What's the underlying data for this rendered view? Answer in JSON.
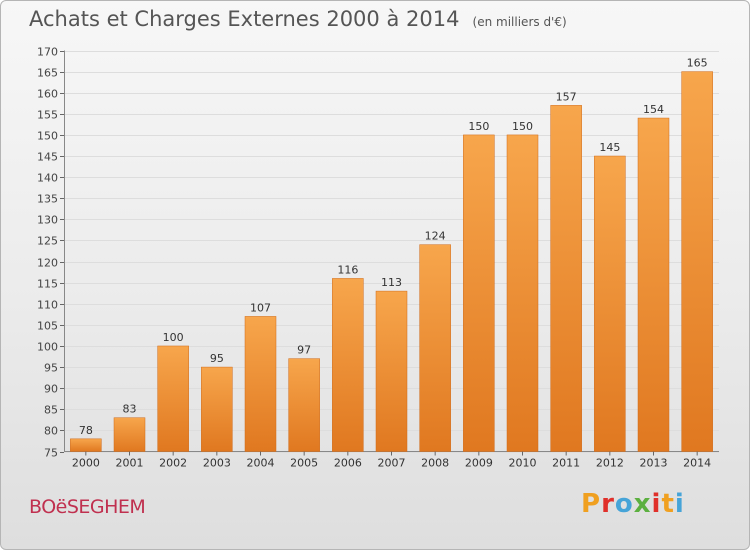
{
  "header": {
    "title": "Achats et Charges Externes 2000 à 2014",
    "unit": "(en milliers d'€)"
  },
  "footer": {
    "commune": "BOëSEGHEM",
    "logo_letters": [
      "P",
      "r",
      "o",
      "x",
      "i",
      "t",
      "i"
    ],
    "logo_colors": [
      "#f0a020",
      "#e0302a",
      "#46a4d8",
      "#5cb040",
      "#e0302a",
      "#f0a020",
      "#46a4d8"
    ]
  },
  "chart_data": {
    "type": "bar",
    "categories": [
      "2000",
      "2001",
      "2002",
      "2003",
      "2004",
      "2005",
      "2006",
      "2007",
      "2008",
      "2009",
      "2010",
      "2011",
      "2012",
      "2013",
      "2014"
    ],
    "values": [
      78,
      83,
      100,
      95,
      107,
      97,
      116,
      113,
      124,
      150,
      150,
      157,
      145,
      154,
      165
    ],
    "ylim": [
      75,
      170
    ],
    "ytick_step": 5,
    "grid": true,
    "bar_color_light": "#f7a64c",
    "bar_color_dark": "#e07820"
  }
}
